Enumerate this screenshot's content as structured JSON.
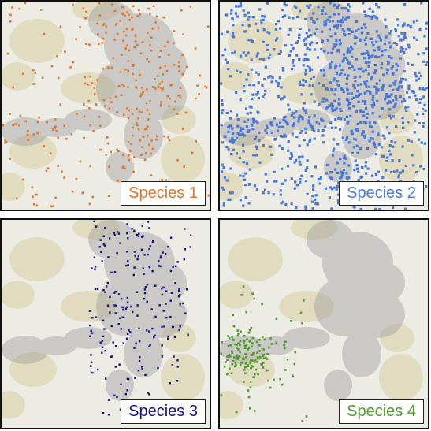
{
  "figure": {
    "landscape": {
      "base_color": "#ecebe4",
      "habitat_color": "#d9cfa3",
      "ridge_color": "#9c9c9c"
    },
    "panels": [
      {
        "label": "Species 1",
        "color": "#e2762f",
        "density": "sparse"
      },
      {
        "label": "Species 2",
        "color": "#4a78d6",
        "density": "dense"
      },
      {
        "label": "Species 3",
        "color": "#14137f",
        "density": "clustered"
      },
      {
        "label": "Species 4",
        "color": "#4e9a2e",
        "density": "localized"
      }
    ]
  }
}
